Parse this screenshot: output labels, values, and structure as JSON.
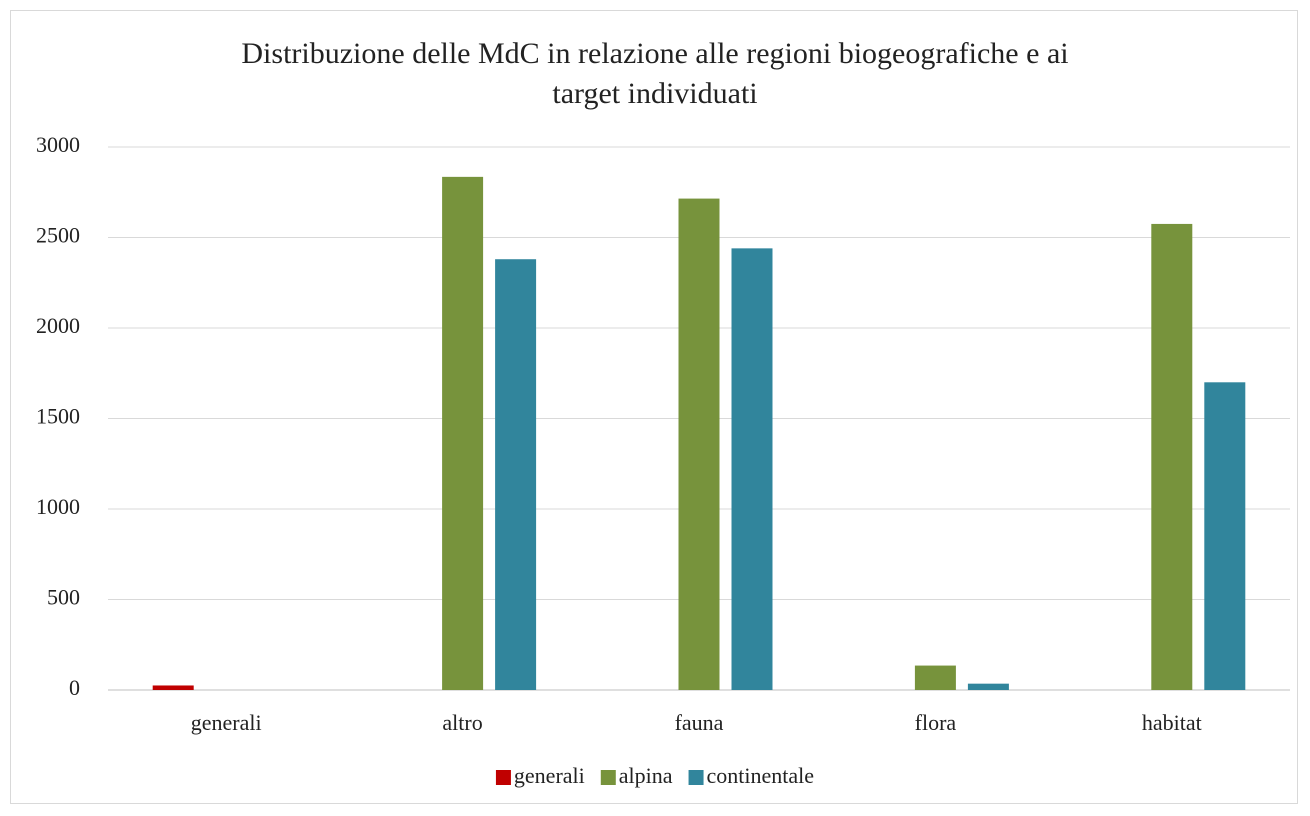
{
  "chart_data": {
    "type": "bar",
    "title": "Distribuzione delle MdC in relazione alle regioni biogeografiche e ai target individuati",
    "categories": [
      "generali",
      "altro",
      "fauna",
      "flora",
      "habitat"
    ],
    "series": [
      {
        "name": "generali",
        "color": "#c00000",
        "values": [
          25,
          null,
          null,
          null,
          null
        ]
      },
      {
        "name": "alpina",
        "color": "#77933c",
        "values": [
          null,
          2835,
          2715,
          135,
          2575
        ]
      },
      {
        "name": "continentale",
        "color": "#31859c",
        "values": [
          null,
          2380,
          2440,
          35,
          1700
        ]
      }
    ],
    "ylim": [
      0,
      3000
    ],
    "yticks": [
      0,
      500,
      1000,
      1500,
      2000,
      2500,
      3000
    ],
    "grid": true,
    "legend": "bottom"
  }
}
